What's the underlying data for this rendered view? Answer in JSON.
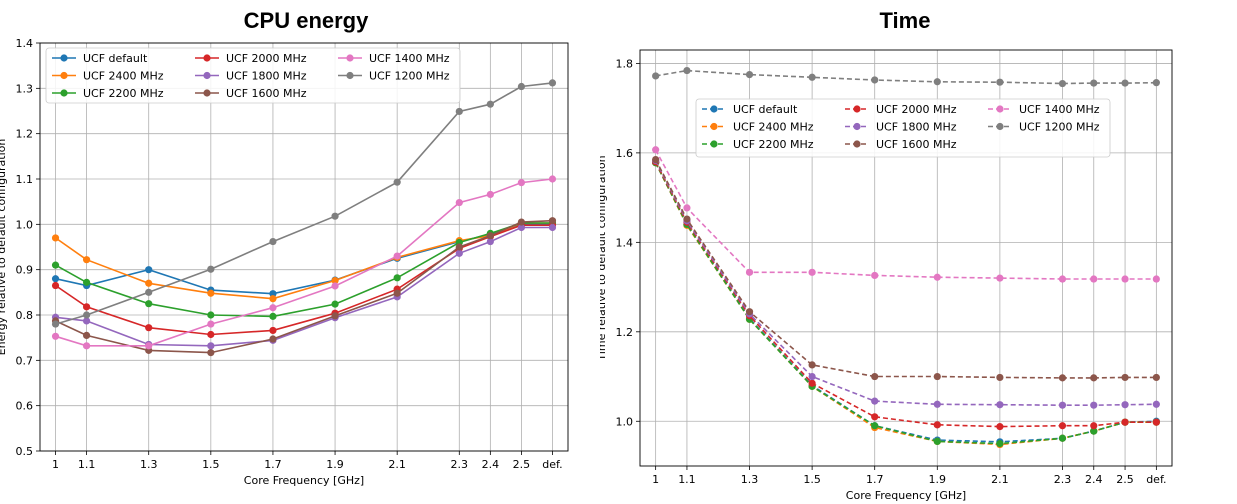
{
  "chart_data": [
    {
      "type": "line",
      "title": "CPU energy",
      "xlabel": "Core Frequency [GHz]",
      "ylabel": "Energy relative to default configuration",
      "categories": [
        "1",
        "1.1",
        "1.3",
        "1.5",
        "1.7",
        "1.9",
        "2.1",
        "2.3",
        "2.4",
        "2.5",
        "def."
      ],
      "x": [
        1.0,
        1.1,
        1.3,
        1.5,
        1.7,
        1.9,
        2.1,
        2.3,
        2.4,
        2.5,
        2.6
      ],
      "ylim": [
        0.5,
        1.4
      ],
      "yticks": [
        "0.5",
        "0.6",
        "0.7",
        "0.8",
        "0.9",
        "1.0",
        "1.1",
        "1.2",
        "1.3",
        "1.4"
      ],
      "grid": true,
      "legend": "top-left",
      "line_style": "solid",
      "series": [
        {
          "name": "UCF default",
          "color": "#1f77b4",
          "values": [
            0.88,
            0.865,
            0.9,
            0.855,
            0.847,
            0.877,
            0.925,
            0.962,
            0.978,
            1.0,
            1.0
          ]
        },
        {
          "name": "UCF 2400 MHz",
          "color": "#ff7f0e",
          "values": [
            0.97,
            0.922,
            0.87,
            0.848,
            0.836,
            0.876,
            0.927,
            0.964,
            0.975,
            1.003,
            1.003
          ]
        },
        {
          "name": "UCF 2200 MHz",
          "color": "#2ca02c",
          "values": [
            0.91,
            0.872,
            0.825,
            0.8,
            0.797,
            0.824,
            0.882,
            0.96,
            0.98,
            1.003,
            1.003
          ]
        },
        {
          "name": "UCF 2000 MHz",
          "color": "#d62728",
          "values": [
            0.865,
            0.818,
            0.772,
            0.757,
            0.766,
            0.804,
            0.857,
            0.947,
            0.973,
            0.998,
            0.998
          ]
        },
        {
          "name": "UCF 1800 MHz",
          "color": "#9467bd",
          "values": [
            0.795,
            0.787,
            0.735,
            0.732,
            0.744,
            0.794,
            0.84,
            0.936,
            0.962,
            0.993,
            0.993
          ]
        },
        {
          "name": "UCF 1600 MHz",
          "color": "#8c564b",
          "values": [
            0.787,
            0.755,
            0.722,
            0.717,
            0.747,
            0.798,
            0.848,
            0.95,
            0.975,
            1.005,
            1.008
          ]
        },
        {
          "name": "UCF 1400 MHz",
          "color": "#e377c2",
          "values": [
            0.753,
            0.732,
            0.732,
            0.78,
            0.816,
            0.864,
            0.93,
            1.048,
            1.066,
            1.092,
            1.1
          ]
        },
        {
          "name": "UCF 1200 MHz",
          "color": "#7f7f7f",
          "values": [
            0.78,
            0.8,
            0.85,
            0.901,
            0.962,
            1.018,
            1.093,
            1.249,
            1.265,
            1.304,
            1.312
          ]
        }
      ]
    },
    {
      "type": "line",
      "title": "Time",
      "xlabel": "Core Frequency [GHz]",
      "ylabel": "Time relative to default configuration",
      "categories": [
        "1",
        "1.1",
        "1.3",
        "1.5",
        "1.7",
        "1.9",
        "2.1",
        "2.3",
        "2.4",
        "2.5",
        "def."
      ],
      "x": [
        1.0,
        1.1,
        1.3,
        1.5,
        1.7,
        1.9,
        2.1,
        2.3,
        2.4,
        2.5,
        2.6
      ],
      "ylim": [
        0.9,
        1.83
      ],
      "yticks": [
        "1.0",
        "1.2",
        "1.4",
        "1.6",
        "1.8"
      ],
      "grid": true,
      "legend": "upper-center",
      "line_style": "dashed",
      "series": [
        {
          "name": "UCF default",
          "color": "#1f77b4",
          "values": [
            1.578,
            1.44,
            1.23,
            1.08,
            0.99,
            0.958,
            0.954,
            0.962,
            0.978,
            0.998,
            1.0
          ]
        },
        {
          "name": "UCF 2400 MHz",
          "color": "#ff7f0e",
          "values": [
            1.578,
            1.438,
            1.228,
            1.078,
            0.986,
            0.955,
            0.948,
            0.962,
            0.978,
            0.998,
            0.998
          ]
        },
        {
          "name": "UCF 2200 MHz",
          "color": "#2ca02c",
          "values": [
            1.578,
            1.44,
            1.228,
            1.078,
            0.99,
            0.955,
            0.95,
            0.962,
            0.978,
            0.998,
            0.998
          ]
        },
        {
          "name": "UCF 2000 MHz",
          "color": "#d62728",
          "values": [
            1.58,
            1.445,
            1.236,
            1.085,
            1.01,
            0.992,
            0.988,
            0.99,
            0.99,
            0.998,
            0.998
          ]
        },
        {
          "name": "UCF 1800 MHz",
          "color": "#9467bd",
          "values": [
            1.583,
            1.448,
            1.24,
            1.1,
            1.045,
            1.038,
            1.037,
            1.036,
            1.036,
            1.037,
            1.038
          ]
        },
        {
          "name": "UCF 1600 MHz",
          "color": "#8c564b",
          "values": [
            1.585,
            1.452,
            1.245,
            1.126,
            1.1,
            1.1,
            1.098,
            1.097,
            1.097,
            1.098,
            1.098
          ]
        },
        {
          "name": "UCF 1400 MHz",
          "color": "#e377c2",
          "values": [
            1.607,
            1.477,
            1.333,
            1.333,
            1.326,
            1.322,
            1.32,
            1.318,
            1.318,
            1.318,
            1.318
          ]
        },
        {
          "name": "UCF 1200 MHz",
          "color": "#7f7f7f",
          "values": [
            1.772,
            1.784,
            1.775,
            1.769,
            1.763,
            1.759,
            1.758,
            1.755,
            1.756,
            1.756,
            1.757
          ]
        }
      ]
    }
  ]
}
